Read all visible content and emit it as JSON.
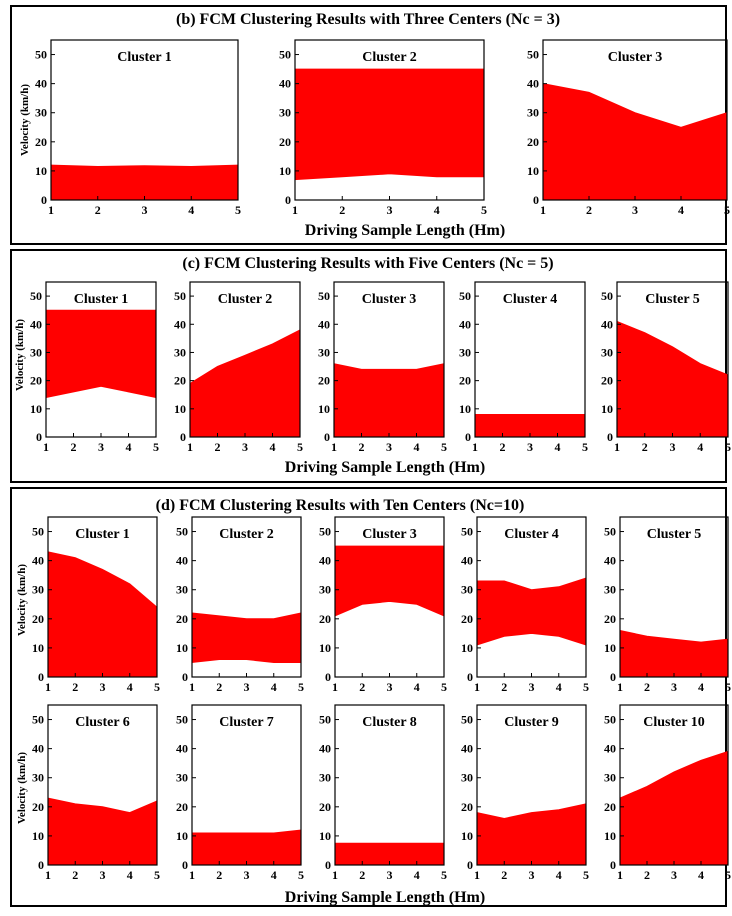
{
  "panels": [
    {
      "title": "(b) FCM Clustering Results with Three Centers (Nc = 3)",
      "xlabel": "Driving Sample Length (Hm)",
      "ylabel": "Velocity (km/h)",
      "charts": [
        {
          "type": "area",
          "title": "Cluster 1",
          "x": [
            1,
            2,
            3,
            4,
            5
          ],
          "upper": [
            12,
            11.5,
            11.8,
            11.5,
            12
          ],
          "lower": [
            0,
            0,
            0,
            0,
            0
          ],
          "ylim": [
            0,
            55
          ],
          "xlim": [
            1,
            5
          ]
        },
        {
          "type": "area",
          "title": "Cluster 2",
          "x": [
            1,
            2,
            3,
            4,
            5
          ],
          "upper": [
            45,
            45,
            45,
            45,
            45
          ],
          "lower": [
            7,
            8,
            9,
            8,
            8
          ],
          "ylim": [
            0,
            55
          ],
          "xlim": [
            1,
            5
          ]
        },
        {
          "type": "area",
          "title": "Cluster 3",
          "x": [
            1,
            2,
            3,
            4,
            5
          ],
          "upper": [
            40,
            37,
            30,
            25,
            30
          ],
          "lower": [
            0,
            0,
            0,
            0,
            0
          ],
          "ylim": [
            0,
            55
          ],
          "xlim": [
            1,
            5
          ]
        }
      ]
    },
    {
      "title": "(c) FCM Clustering Results with Five Centers (Nc = 5)",
      "xlabel": "Driving Sample Length (Hm)",
      "ylabel": "Velocity (km/h)",
      "charts": [
        {
          "type": "area",
          "title": "Cluster 1",
          "x": [
            1,
            2,
            3,
            4,
            5
          ],
          "upper": [
            45,
            45,
            45,
            45,
            45
          ],
          "lower": [
            14,
            16,
            18,
            16,
            14
          ],
          "ylim": [
            0,
            55
          ],
          "xlim": [
            1,
            5
          ]
        },
        {
          "type": "area",
          "title": "Cluster 2",
          "x": [
            1,
            2,
            3,
            4,
            5
          ],
          "upper": [
            19,
            25,
            29,
            33,
            38
          ],
          "lower": [
            0,
            0,
            0,
            0,
            0
          ],
          "ylim": [
            0,
            55
          ],
          "xlim": [
            1,
            5
          ]
        },
        {
          "type": "area",
          "title": "Cluster 3",
          "x": [
            1,
            2,
            3,
            4,
            5
          ],
          "upper": [
            26,
            24,
            24,
            24,
            26
          ],
          "lower": [
            0,
            0,
            0,
            0,
            0
          ],
          "ylim": [
            0,
            55
          ],
          "xlim": [
            1,
            5
          ]
        },
        {
          "type": "area",
          "title": "Cluster 4",
          "x": [
            1,
            2,
            3,
            4,
            5
          ],
          "upper": [
            8,
            8,
            8,
            8,
            8
          ],
          "lower": [
            0,
            0,
            0,
            0,
            0
          ],
          "ylim": [
            0,
            55
          ],
          "xlim": [
            1,
            5
          ]
        },
        {
          "type": "area",
          "title": "Cluster 5",
          "x": [
            1,
            2,
            3,
            4,
            5
          ],
          "upper": [
            41,
            37,
            32,
            26,
            22
          ],
          "lower": [
            0,
            0,
            0,
            0,
            0
          ],
          "ylim": [
            0,
            55
          ],
          "xlim": [
            1,
            5
          ]
        }
      ]
    },
    {
      "title": "(d) FCM Clustering Results with Ten Centers (Nc=10)",
      "xlabel": "Driving Sample Length (Hm)",
      "ylabel": "Velocity (km/h)",
      "charts": [
        {
          "type": "area",
          "title": "Cluster 1",
          "x": [
            1,
            2,
            3,
            4,
            5
          ],
          "upper": [
            43,
            41,
            37,
            32,
            24
          ],
          "lower": [
            0,
            0,
            0,
            0,
            0
          ],
          "ylim": [
            0,
            55
          ],
          "xlim": [
            1,
            5
          ]
        },
        {
          "type": "area",
          "title": "Cluster 2",
          "x": [
            1,
            2,
            3,
            4,
            5
          ],
          "upper": [
            22,
            21,
            20,
            20,
            22
          ],
          "lower": [
            5,
            6,
            6,
            5,
            5
          ],
          "ylim": [
            0,
            55
          ],
          "xlim": [
            1,
            5
          ]
        },
        {
          "type": "area",
          "title": "Cluster 3",
          "x": [
            1,
            2,
            3,
            4,
            5
          ],
          "upper": [
            45,
            45,
            45,
            45,
            45
          ],
          "lower": [
            21,
            25,
            26,
            25,
            21
          ],
          "ylim": [
            0,
            55
          ],
          "xlim": [
            1,
            5
          ]
        },
        {
          "type": "area",
          "title": "Cluster 4",
          "x": [
            1,
            2,
            3,
            4,
            5
          ],
          "upper": [
            33,
            33,
            30,
            31,
            34
          ],
          "lower": [
            11,
            14,
            15,
            14,
            11
          ],
          "ylim": [
            0,
            55
          ],
          "xlim": [
            1,
            5
          ]
        },
        {
          "type": "area",
          "title": "Cluster 5",
          "x": [
            1,
            2,
            3,
            4,
            5
          ],
          "upper": [
            16,
            14,
            13,
            12,
            13
          ],
          "lower": [
            0,
            0,
            0,
            0,
            0
          ],
          "ylim": [
            0,
            55
          ],
          "xlim": [
            1,
            5
          ]
        },
        {
          "type": "area",
          "title": "Cluster 6",
          "x": [
            1,
            2,
            3,
            4,
            5
          ],
          "upper": [
            23,
            21,
            20,
            18,
            22
          ],
          "lower": [
            0,
            0,
            0,
            0,
            0
          ],
          "ylim": [
            0,
            55
          ],
          "xlim": [
            1,
            5
          ]
        },
        {
          "type": "area",
          "title": "Cluster 7",
          "x": [
            1,
            2,
            3,
            4,
            5
          ],
          "upper": [
            11,
            11,
            11,
            11,
            12
          ],
          "lower": [
            0,
            0,
            0,
            0,
            0
          ],
          "ylim": [
            0,
            55
          ],
          "xlim": [
            1,
            5
          ]
        },
        {
          "type": "area",
          "title": "Cluster 8",
          "x": [
            1,
            2,
            3,
            4,
            5
          ],
          "upper": [
            7.5,
            7.5,
            7.5,
            7.5,
            7.5
          ],
          "lower": [
            0,
            0,
            0,
            0,
            0
          ],
          "ylim": [
            0,
            55
          ],
          "xlim": [
            1,
            5
          ]
        },
        {
          "type": "area",
          "title": "Cluster 9",
          "x": [
            1,
            2,
            3,
            4,
            5
          ],
          "upper": [
            18,
            16,
            18,
            19,
            21
          ],
          "lower": [
            0,
            0,
            0,
            0,
            0
          ],
          "ylim": [
            0,
            55
          ],
          "xlim": [
            1,
            5
          ]
        },
        {
          "type": "area",
          "title": "Cluster 10",
          "x": [
            1,
            2,
            3,
            4,
            5
          ],
          "upper": [
            23,
            27,
            32,
            36,
            39
          ],
          "lower": [
            0,
            0,
            0,
            0,
            0
          ],
          "ylim": [
            0,
            55
          ],
          "xlim": [
            1,
            5
          ]
        }
      ]
    }
  ],
  "axes": {
    "x_ticks": [
      1,
      2,
      3,
      4,
      5
    ],
    "y_ticks": [
      0,
      10,
      20,
      30,
      40,
      50
    ]
  },
  "colors": {
    "fill": "#ff0000",
    "axis": "#000000",
    "background": "#ffffff"
  }
}
